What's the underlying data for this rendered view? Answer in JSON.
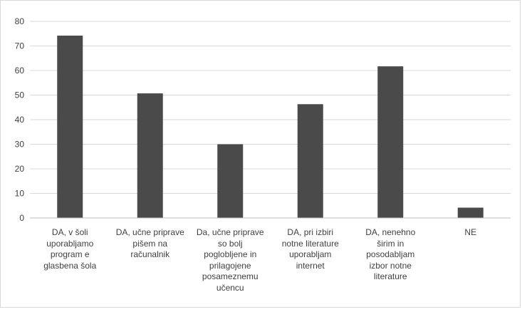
{
  "chart_data": {
    "type": "bar",
    "categories": [
      "DA, v šoli uporabljamo program e glasbena šola",
      "DA, učne priprave pišem na računalnik",
      "Da, učne priprave so bolj poglobljene in prilagojene posameznemu učencu",
      "DA, pri izbiri notne literature uporabljam internet",
      "DA, nenehno širim in posodabljam izbor notne literature",
      "NE"
    ],
    "category_lines": [
      [
        "DA, v šoli",
        "uporabljamo",
        "program e",
        "glasbena šola"
      ],
      [
        "DA, učne priprave",
        "pišem na",
        "računalnik"
      ],
      [
        "Da, učne priprave",
        "so bolj",
        "poglobljene in",
        "prilagojene",
        "posameznemu",
        "učencu"
      ],
      [
        "DA, pri izbiri",
        "notne literature",
        "uporabljam",
        "internet"
      ],
      [
        "DA, nenehno",
        "širim in",
        "posodabljam",
        "izbor notne",
        "literature"
      ],
      [
        "NE"
      ]
    ],
    "values": [
      74.2,
      50.7,
      30,
      46.3,
      61.7,
      4.2
    ],
    "yticks": [
      "0",
      "10",
      "20",
      "30",
      "40",
      "50",
      "60",
      "70",
      "80"
    ],
    "ylim": [
      0,
      80
    ],
    "grid": true,
    "title": "",
    "xlabel": "",
    "ylabel": "",
    "colors": {
      "bar": "#4a4a4a",
      "grid": "#d9d9d9",
      "axis": "#bfbfbf",
      "text": "#404040"
    }
  }
}
